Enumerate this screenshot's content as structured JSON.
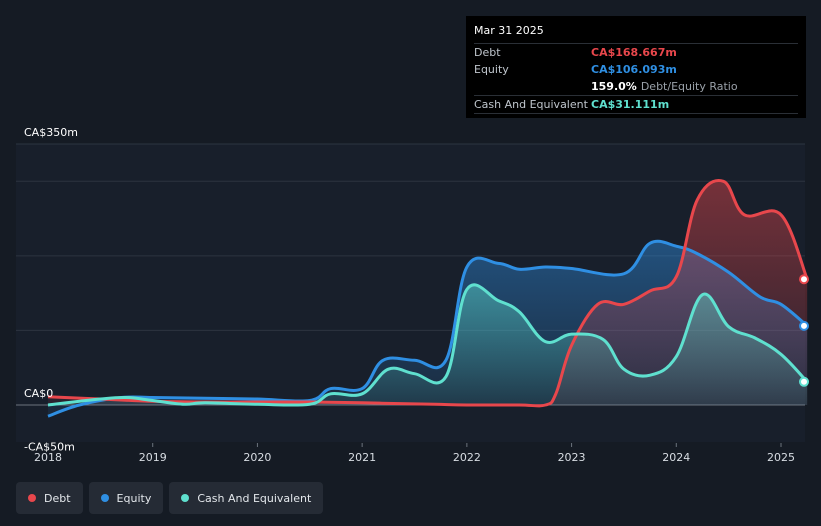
{
  "chart_data": {
    "type": "area",
    "ylim": [
      -50,
      350
    ],
    "y_ticks": [
      {
        "value": 350,
        "label": "CA$350m"
      },
      {
        "value": 0,
        "label": "CA$0"
      },
      {
        "value": -50,
        "label": "-CA$50m"
      }
    ],
    "x_ticks": [
      {
        "value": 2018,
        "label": "2018"
      },
      {
        "value": 2019,
        "label": "2019"
      },
      {
        "value": 2020,
        "label": "2020"
      },
      {
        "value": 2021,
        "label": "2021"
      },
      {
        "value": 2022,
        "label": "2022"
      },
      {
        "value": 2023,
        "label": "2023"
      },
      {
        "value": 2024,
        "label": "2024"
      },
      {
        "value": 2025,
        "label": "2025"
      }
    ],
    "series": [
      {
        "name": "Debt",
        "color": "#e8474c",
        "points": [
          [
            2018.0,
            11
          ],
          [
            2018.5,
            8
          ],
          [
            2019.0,
            5
          ],
          [
            2019.5,
            4
          ],
          [
            2020.0,
            4
          ],
          [
            2020.5,
            4
          ],
          [
            2021.0,
            3
          ],
          [
            2021.3,
            2
          ],
          [
            2021.7,
            1
          ],
          [
            2022.0,
            0
          ],
          [
            2022.5,
            0
          ],
          [
            2022.75,
            0
          ],
          [
            2022.85,
            15
          ],
          [
            2023.0,
            80
          ],
          [
            2023.25,
            135
          ],
          [
            2023.5,
            135
          ],
          [
            2023.75,
            153
          ],
          [
            2024.0,
            172
          ],
          [
            2024.2,
            275
          ],
          [
            2024.45,
            300
          ],
          [
            2024.65,
            255
          ],
          [
            2025.0,
            255
          ],
          [
            2025.25,
            168.667
          ]
        ]
      },
      {
        "name": "Equity",
        "color": "#2f8fe3",
        "points": [
          [
            2018.0,
            -15
          ],
          [
            2018.3,
            0
          ],
          [
            2018.7,
            10
          ],
          [
            2019.0,
            10
          ],
          [
            2019.5,
            9
          ],
          [
            2020.0,
            8
          ],
          [
            2020.5,
            6
          ],
          [
            2020.7,
            22
          ],
          [
            2021.0,
            22
          ],
          [
            2021.2,
            60
          ],
          [
            2021.5,
            60
          ],
          [
            2021.8,
            60
          ],
          [
            2022.0,
            185
          ],
          [
            2022.3,
            190
          ],
          [
            2022.5,
            182
          ],
          [
            2022.75,
            185
          ],
          [
            2023.0,
            183
          ],
          [
            2023.5,
            176
          ],
          [
            2023.75,
            217
          ],
          [
            2024.0,
            213
          ],
          [
            2024.2,
            203
          ],
          [
            2024.5,
            178
          ],
          [
            2024.8,
            145
          ],
          [
            2025.0,
            135
          ],
          [
            2025.25,
            106.093
          ]
        ]
      },
      {
        "name": "Cash And Equivalent",
        "color": "#5fe0cf",
        "points": [
          [
            2018.0,
            0
          ],
          [
            2018.5,
            8
          ],
          [
            2018.75,
            10
          ],
          [
            2019.0,
            6
          ],
          [
            2019.3,
            1
          ],
          [
            2019.5,
            3
          ],
          [
            2020.0,
            1
          ],
          [
            2020.5,
            1
          ],
          [
            2020.7,
            15
          ],
          [
            2021.0,
            15
          ],
          [
            2021.25,
            48
          ],
          [
            2021.5,
            42
          ],
          [
            2021.8,
            38
          ],
          [
            2022.0,
            155
          ],
          [
            2022.3,
            140
          ],
          [
            2022.5,
            125
          ],
          [
            2022.75,
            85
          ],
          [
            2023.0,
            95
          ],
          [
            2023.3,
            88
          ],
          [
            2023.5,
            48
          ],
          [
            2023.75,
            40
          ],
          [
            2024.0,
            65
          ],
          [
            2024.25,
            148
          ],
          [
            2024.5,
            105
          ],
          [
            2024.75,
            90
          ],
          [
            2025.0,
            68
          ],
          [
            2025.25,
            31.111
          ]
        ]
      }
    ]
  },
  "tooltip": {
    "date": "Mar 31 2025",
    "debt_label": "Debt",
    "debt_value": "CA$168.667m",
    "equity_label": "Equity",
    "equity_value": "CA$106.093m",
    "ratio_value": "159.0%",
    "ratio_label": "Debt/Equity Ratio",
    "cash_label": "Cash And Equivalent",
    "cash_value": "CA$31.111m"
  },
  "legend": [
    {
      "label": "Debt",
      "color": "#e8474c"
    },
    {
      "label": "Equity",
      "color": "#2f8fe3"
    },
    {
      "label": "Cash And Equivalent",
      "color": "#5fe0cf"
    }
  ]
}
